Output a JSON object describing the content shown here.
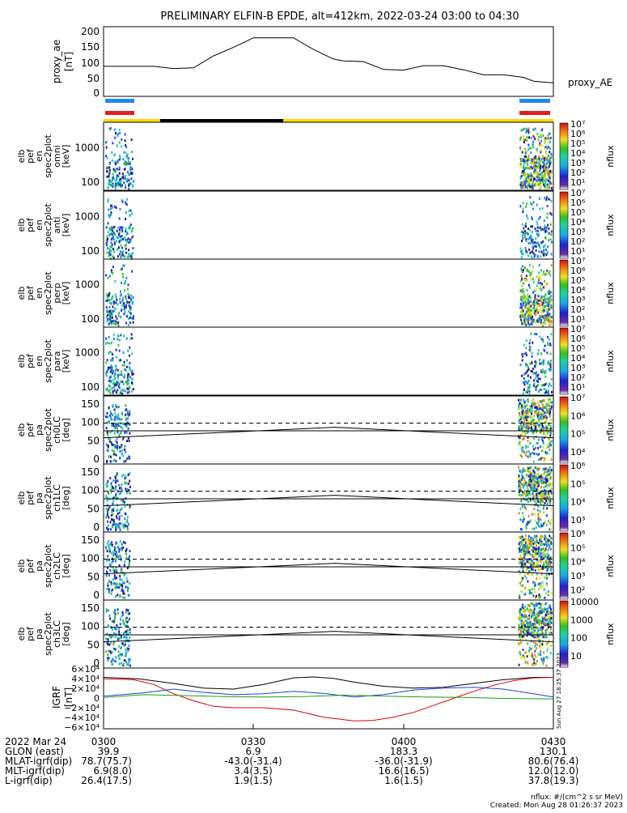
{
  "title": "PRELIMINARY ELFIN-B EPDE, alt=412km, 2022-03-24 03:00 to 04:30",
  "colors": {
    "black": "#000000",
    "red": "#dd0000",
    "blue": "#1f3fe0",
    "green": "#1aa01a",
    "bar_blue": "#1f8ae8",
    "bar_red": "#e02020",
    "bar_yellow": "#ffd800"
  },
  "chart_data": [
    {
      "type": "line",
      "panel": "proxy_ae",
      "ylabel": [
        "proxy_ae",
        "[nT]"
      ],
      "yticks": [
        "200",
        "150",
        "100",
        "50",
        "0"
      ],
      "ylim": [
        -10,
        210
      ],
      "series": [
        {
          "name": "proxy_AE",
          "x": [
            0,
            5,
            10,
            14,
            18,
            22,
            26,
            30,
            34,
            38,
            42,
            46,
            48,
            52,
            56,
            60,
            64,
            66,
            68,
            72,
            76,
            80,
            84,
            86,
            88,
            90
          ],
          "values": [
            85,
            85,
            85,
            78,
            80,
            118,
            145,
            175,
            175,
            175,
            138,
            108,
            102,
            100,
            75,
            73,
            87,
            87,
            87,
            74,
            58,
            58,
            50,
            38,
            35,
            33
          ]
        }
      ]
    },
    {
      "type": "heatmap",
      "panel": "energy_omni",
      "ylabel": [
        "elb",
        "pef",
        "en",
        "spec2plot",
        "omni",
        "[keV]"
      ],
      "yticks": [
        "1000",
        "100"
      ],
      "colorbar": {
        "label": "nflux",
        "ticks": [
          "10⁷",
          "10⁶",
          "10⁵",
          "10⁴",
          "10³",
          "10²",
          "10¹"
        ]
      }
    },
    {
      "type": "heatmap",
      "panel": "energy_anti",
      "ylabel": [
        "elb",
        "pef",
        "en",
        "spec2plot",
        "anti",
        "[keV]"
      ],
      "yticks": [
        "1000",
        "100"
      ],
      "colorbar": {
        "label": "nflux",
        "ticks": [
          "10⁷",
          "10⁶",
          "10⁵",
          "10⁴",
          "10³",
          "10²",
          "10¹"
        ]
      }
    },
    {
      "type": "heatmap",
      "panel": "energy_perp",
      "ylabel": [
        "elb",
        "pef",
        "en",
        "spec2plot",
        "perp",
        "[keV]"
      ],
      "yticks": [
        "1000",
        "100"
      ],
      "colorbar": {
        "label": "nflux",
        "ticks": [
          "10⁷",
          "10⁶",
          "10⁵",
          "10⁴",
          "10³",
          "10²",
          "10¹"
        ]
      }
    },
    {
      "type": "heatmap",
      "panel": "energy_para",
      "ylabel": [
        "elb",
        "pef",
        "en",
        "spec2plot",
        "para",
        "[keV]"
      ],
      "yticks": [
        "1000",
        "100"
      ],
      "colorbar": {
        "label": "nflux",
        "ticks": [
          "10⁷",
          "10⁶",
          "10⁵",
          "10⁴",
          "10³",
          "10²",
          "10¹"
        ]
      }
    },
    {
      "type": "heatmap",
      "panel": "pa_ch0",
      "ylabel": [
        "elb",
        "pef",
        "pa",
        "spec2plot",
        "ch0LC",
        "[deg]"
      ],
      "yticks": [
        "150",
        "100",
        "50",
        "0"
      ],
      "ylim": [
        0,
        180
      ],
      "colorbar": {
        "label": "nflux",
        "ticks": [
          "10⁷",
          "10⁶",
          "10⁵",
          "10⁴"
        ]
      }
    },
    {
      "type": "heatmap",
      "panel": "pa_ch1",
      "ylabel": [
        "elb",
        "pef",
        "pa",
        "spec2plot",
        "ch1LC",
        "[deg]"
      ],
      "yticks": [
        "150",
        "100",
        "50",
        "0"
      ],
      "ylim": [
        0,
        180
      ],
      "colorbar": {
        "label": "nflux",
        "ticks": [
          "10⁶",
          "10⁵",
          "10⁴",
          "10³"
        ]
      }
    },
    {
      "type": "heatmap",
      "panel": "pa_ch2",
      "ylabel": [
        "elb",
        "pef",
        "pa",
        "spec2plot",
        "ch2LC",
        "[deg]"
      ],
      "yticks": [
        "150",
        "100",
        "50",
        "0"
      ],
      "ylim": [
        0,
        180
      ],
      "colorbar": {
        "label": "nflux",
        "ticks": [
          "10⁶",
          "10⁵",
          "10⁴",
          "10³",
          "10²"
        ]
      }
    },
    {
      "type": "heatmap",
      "panel": "pa_ch3",
      "ylabel": [
        "elb",
        "pef",
        "pa",
        "spec2plot",
        "ch3LC",
        "[deg]"
      ],
      "yticks": [
        "150",
        "100",
        "50",
        "0"
      ],
      "ylim": [
        0,
        180
      ],
      "colorbar": {
        "label": "nflux",
        "ticks": [
          "10000",
          "1000",
          "100",
          "10"
        ]
      }
    },
    {
      "type": "line",
      "panel": "igrf",
      "ylabel": [
        "IGRF",
        "[nT]"
      ],
      "yticks": [
        "6×10⁴",
        "4×10⁴",
        "2×10⁴",
        "0",
        "−2×10⁴",
        "−4×10⁴",
        "−6×10⁴"
      ],
      "ylim": [
        -65000,
        65000
      ],
      "series": [
        {
          "x": [
            0,
            7,
            14,
            20,
            26,
            32,
            38,
            42,
            46,
            50,
            56,
            62,
            68,
            74,
            80,
            86,
            90
          ],
          "values": [
            45000,
            42000,
            32000,
            22000,
            20000,
            30000,
            44000,
            46000,
            43000,
            35000,
            26000,
            22000,
            24000,
            32000,
            40000,
            45000,
            45000
          ]
        },
        {
          "x": [
            0,
            6,
            10,
            14,
            18,
            22,
            26,
            32,
            38,
            44,
            50,
            54,
            58,
            62,
            66,
            70,
            74,
            78,
            82,
            86,
            90
          ],
          "values": [
            42000,
            40000,
            30000,
            10000,
            -5000,
            -17000,
            -20000,
            -20000,
            -25000,
            -40000,
            -48000,
            -47000,
            -40000,
            -30000,
            -15000,
            0,
            15000,
            28000,
            38000,
            44000,
            45000
          ]
        },
        {
          "x": [
            0,
            8,
            14,
            20,
            26,
            32,
            38,
            44,
            50,
            56,
            62,
            68,
            74,
            80,
            86,
            90
          ],
          "values": [
            5000,
            12000,
            20000,
            13000,
            8000,
            10000,
            15000,
            11000,
            3000,
            8000,
            18000,
            22000,
            24000,
            20000,
            10000,
            3000
          ]
        },
        {
          "x": [
            0,
            8,
            16,
            24,
            32,
            40,
            48,
            56,
            64,
            72,
            80,
            90
          ],
          "values": [
            2000,
            8000,
            6000,
            4000,
            3000,
            4000,
            7000,
            5000,
            3000,
            2000,
            0,
            -1000
          ]
        }
      ]
    }
  ],
  "time_axis": {
    "ticks": [
      "0300",
      "0330",
      "0400",
      "0430"
    ]
  },
  "orbit_table": {
    "rows": [
      {
        "label": "2022 Mar 24",
        "values": [
          "0300",
          "0330",
          "0400",
          "0430"
        ]
      },
      {
        "label": "GLON (east)",
        "values": [
          "39.9",
          "6.9",
          "183.3",
          "130.1"
        ]
      },
      {
        "label": "MLAT-igrf(dip)",
        "values": [
          "78.7(75.7)",
          "-43.0(-31.4)",
          "-36.0(-31.9)",
          "80.6(76.4)"
        ]
      },
      {
        "label": "MLT-igrf(dip)",
        "values": [
          "6.9(8.0)",
          "3.4(3.5)",
          "16.6(16.5)",
          "12.0(12.0)"
        ]
      },
      {
        "label": "L-igrf(dip)",
        "values": [
          "26.4(17.5)",
          "1.9(1.5)",
          "1.6(1.5)",
          "37.8(19.3)"
        ]
      }
    ]
  },
  "footnote": {
    "units": "nflux: #/(cm^2 s sr MeV)",
    "created": "Created: Mon Aug 28 01:26:37 2023",
    "side_stamp": "Sun Aug 27 18:25:37 2023"
  },
  "proxy_label": "proxy_AE"
}
